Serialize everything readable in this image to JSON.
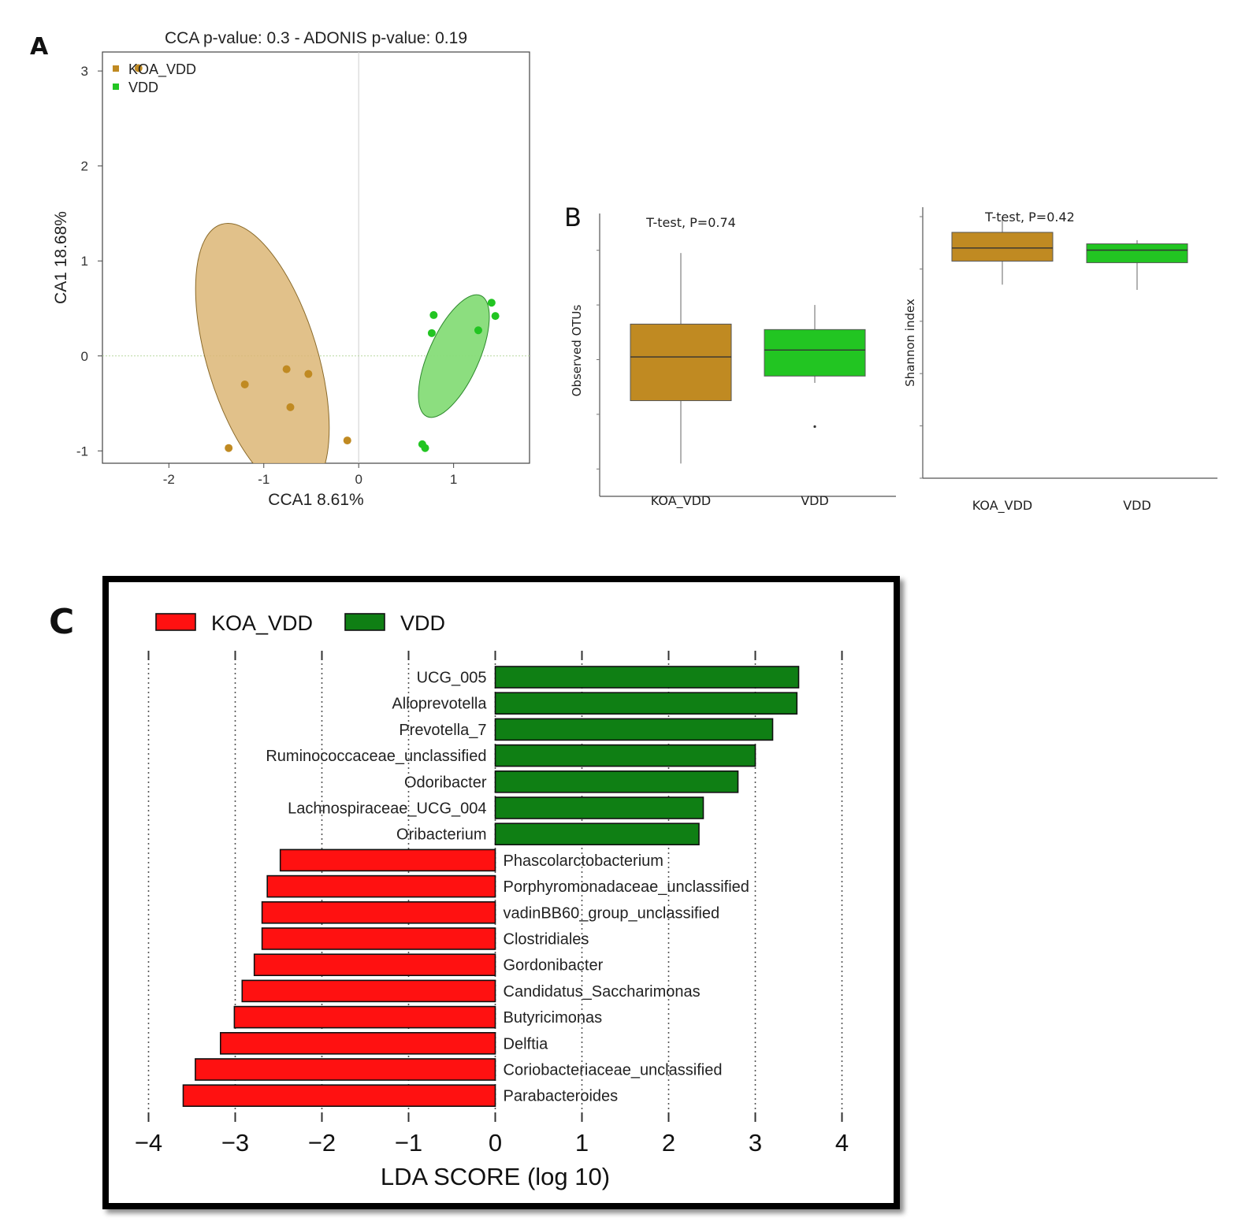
{
  "panels": {
    "a": "A",
    "b": "B",
    "c": "C"
  },
  "colors": {
    "koa": "#c08a22",
    "koa_ellipse": "#dcb676",
    "vdd": "#22c522",
    "vdd_ellipse": "#86dc78",
    "lda_koa": "#ff1111",
    "lda_vdd": "#0f7f14"
  },
  "chart_data": [
    {
      "type": "scatter",
      "title": "CCA p-value: 0.3 - ADONIS p-value: 0.19",
      "xlabel": "CCA1  8.61%",
      "ylabel": "CA1 18.68%",
      "xlim": [
        -2.7,
        1.8
      ],
      "ylim": [
        -1.13,
        3.2
      ],
      "xticks": [
        "-2",
        "-1",
        "0",
        "1"
      ],
      "xtick_values": [
        -2,
        -1,
        0,
        1
      ],
      "yticks": [
        "-1",
        "0",
        "1",
        "2",
        "3"
      ],
      "ytick_values": [
        -1,
        0,
        1,
        2,
        3
      ],
      "legend_position": "top-left",
      "series": [
        {
          "name": "KOA_VDD",
          "color": "#c08a22",
          "points": [
            [
              -2.32,
              3.03
            ],
            [
              -0.76,
              -0.14
            ],
            [
              -0.53,
              -0.19
            ],
            [
              -1.2,
              -0.3
            ],
            [
              -0.72,
              -0.54
            ],
            [
              -0.12,
              -0.89
            ],
            [
              -1.37,
              -0.97
            ]
          ]
        },
        {
          "name": "VDD",
          "color": "#22c522",
          "points": [
            [
              1.4,
              0.56
            ],
            [
              1.44,
              0.42
            ],
            [
              0.79,
              0.43
            ],
            [
              1.26,
              0.27
            ],
            [
              0.77,
              0.24
            ],
            [
              0.67,
              -0.93
            ],
            [
              0.7,
              -0.97
            ]
          ]
        }
      ]
    },
    {
      "type": "box",
      "title": "T-test, P=0.74",
      "ylabel": "Observed OTUs",
      "categories": [
        "KOA_VDD",
        "VDD"
      ],
      "ylim": [
        100,
        300
      ],
      "boxes": [
        {
          "name": "KOA_VDD",
          "min": 124,
          "q1": 170,
          "median": 202,
          "q3": 226,
          "max": 278
        },
        {
          "name": "VDD",
          "min": 183,
          "q1": 188,
          "median": 207,
          "q3": 222,
          "max": 240,
          "outliers": [
            151
          ]
        }
      ]
    },
    {
      "type": "box",
      "title": "T-test, P=0.42",
      "ylabel": "Shannon index",
      "categories": [
        "KOA_VDD",
        "VDD"
      ],
      "ylim": [
        0,
        5
      ],
      "boxes": [
        {
          "name": "KOA_VDD",
          "min": 3.7,
          "q1": 4.15,
          "median": 4.4,
          "q3": 4.7,
          "max": 5.0
        },
        {
          "name": "VDD",
          "min": 3.6,
          "q1": 4.12,
          "median": 4.36,
          "q3": 4.48,
          "max": 4.55
        }
      ]
    },
    {
      "type": "bar",
      "orientation": "horizontal",
      "xlabel": "LDA SCORE (log 10)",
      "xlim": [
        -4,
        4
      ],
      "xticks": [
        "−4",
        "−3",
        "−2",
        "−1",
        "0",
        "1",
        "2",
        "3",
        "4"
      ],
      "xtick_values": [
        -4,
        -3,
        -2,
        -1,
        0,
        1,
        2,
        3,
        4
      ],
      "grid": true,
      "legend_position": "top-left",
      "legend": [
        {
          "name": "KOA_VDD",
          "color": "#ff1111"
        },
        {
          "name": "VDD",
          "color": "#0f7f14"
        }
      ],
      "categories": [
        "UCG_005",
        "Alloprevotella",
        "Prevotella_7",
        "Ruminococcaceae_unclassified",
        "Odoribacter",
        "Lachnospiraceae_UCG_004",
        "Oribacterium",
        "Phascolarctobacterium",
        "Porphyromonadaceae_unclassified",
        "vadinBB60_group_unclassified",
        "Clostridiales",
        "Gordonibacter",
        "Candidatus_Saccharimonas",
        "Butyricimonas",
        "Delftia",
        "Coriobacteriaceae_unclassified",
        "Parabacteroides"
      ],
      "values": [
        3.5,
        3.48,
        3.2,
        3.0,
        2.8,
        2.4,
        2.35,
        -2.48,
        -2.63,
        -2.69,
        -2.69,
        -2.78,
        -2.92,
        -3.01,
        -3.17,
        -3.46,
        -3.6
      ]
    }
  ]
}
